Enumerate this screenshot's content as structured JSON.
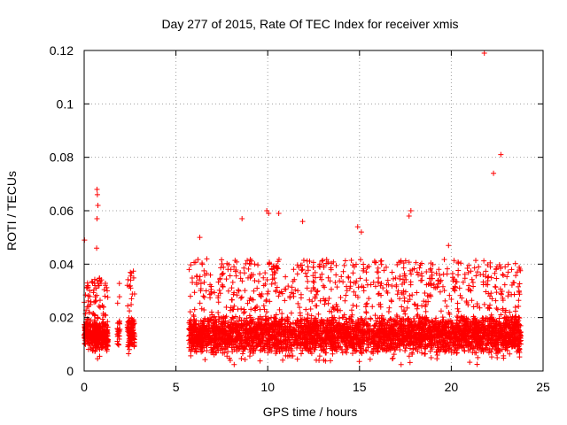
{
  "chart_data": {
    "type": "scatter",
    "title": "Day 277 of 2015, Rate Of TEC Index for receiver xmis",
    "xlabel": "GPS time / hours",
    "ylabel": "ROTI / TECUs",
    "xlim": [
      0,
      25
    ],
    "ylim": [
      0,
      0.12
    ],
    "x_ticks": [
      0,
      5,
      10,
      15,
      20,
      25
    ],
    "x_tick_labels": [
      "0",
      "5",
      "10",
      "15",
      "20",
      "25"
    ],
    "y_ticks": [
      0,
      0.02,
      0.04,
      0.06,
      0.08,
      0.1,
      0.12
    ],
    "y_tick_labels": [
      "0",
      "0.02",
      "0.04",
      "0.06",
      "0.08",
      "0.1",
      "0.12"
    ],
    "grid": true,
    "marker": "plus",
    "color": "#ff0000",
    "series": [
      {
        "name": "ROTI",
        "segments": [
          {
            "x_range": [
              0.0,
              0.35
            ],
            "y_range": [
              0.006,
              0.033
            ],
            "approx_points": 120
          },
          {
            "x_range": [
              0.35,
              1.3
            ],
            "y_range": [
              0.004,
              0.035
            ],
            "approx_points": 340
          },
          {
            "x_range": [
              1.8,
              1.95
            ],
            "y_range": [
              0.006,
              0.037
            ],
            "approx_points": 30
          },
          {
            "x_range": [
              2.35,
              2.75
            ],
            "y_range": [
              0.005,
              0.038
            ],
            "approx_points": 120
          },
          {
            "x_range": [
              5.7,
              23.8
            ],
            "y_range": [
              0.002,
              0.042
            ],
            "approx_points": 4200
          }
        ],
        "notable_points": [
          {
            "x": 0.02,
            "y": 0.049
          },
          {
            "x": 0.7,
            "y": 0.068
          },
          {
            "x": 0.72,
            "y": 0.066
          },
          {
            "x": 0.75,
            "y": 0.062
          },
          {
            "x": 0.7,
            "y": 0.057
          },
          {
            "x": 0.68,
            "y": 0.046
          },
          {
            "x": 6.3,
            "y": 0.05
          },
          {
            "x": 8.6,
            "y": 0.057
          },
          {
            "x": 9.95,
            "y": 0.06
          },
          {
            "x": 10.05,
            "y": 0.059
          },
          {
            "x": 10.6,
            "y": 0.059
          },
          {
            "x": 11.9,
            "y": 0.056
          },
          {
            "x": 14.9,
            "y": 0.054
          },
          {
            "x": 15.1,
            "y": 0.052
          },
          {
            "x": 17.8,
            "y": 0.06
          },
          {
            "x": 17.7,
            "y": 0.058
          },
          {
            "x": 19.85,
            "y": 0.047
          },
          {
            "x": 21.8,
            "y": 0.119
          },
          {
            "x": 22.3,
            "y": 0.074
          },
          {
            "x": 22.7,
            "y": 0.081
          }
        ]
      }
    ]
  }
}
